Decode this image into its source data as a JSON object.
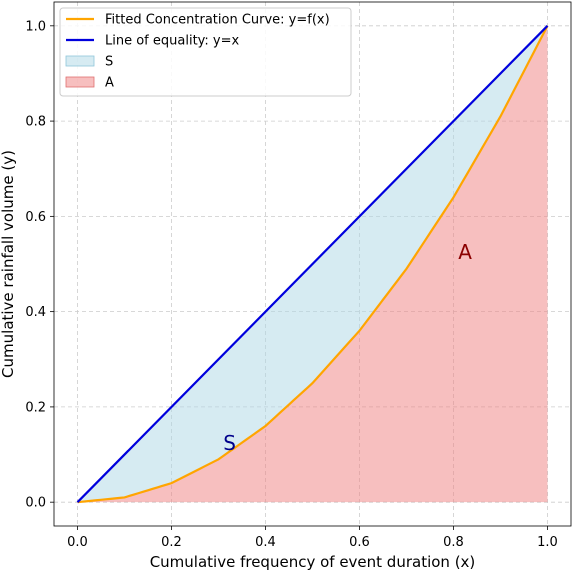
{
  "chart_data": {
    "type": "area",
    "xlabel": "Cumulative frequency of event duration (x)",
    "ylabel": "Cumulative rainfall volume (y)",
    "xlim": [
      -0.05,
      1.05
    ],
    "ylim": [
      -0.05,
      1.05
    ],
    "xticks": [
      "0.0",
      "0.2",
      "0.4",
      "0.6",
      "0.8",
      "1.0"
    ],
    "yticks": [
      "0.0",
      "0.2",
      "0.4",
      "0.6",
      "0.8",
      "1.0"
    ],
    "grid": true,
    "legend_position": "top-left",
    "series": [
      {
        "name": "Fitted Concentration Curve: y=f(x)",
        "kind": "line",
        "color": "#ffa500",
        "x": [
          0.0,
          0.1,
          0.2,
          0.3,
          0.4,
          0.5,
          0.6,
          0.7,
          0.8,
          0.9,
          1.0
        ],
        "y": [
          0.0,
          0.01,
          0.04,
          0.09,
          0.16,
          0.25,
          0.36,
          0.49,
          0.64,
          0.81,
          1.0
        ]
      },
      {
        "name": "Line of equality: y=x",
        "kind": "line",
        "color": "#0000dd",
        "x": [
          0.0,
          1.0
        ],
        "y": [
          0.0,
          1.0
        ]
      }
    ],
    "areas": [
      {
        "name": "S",
        "color": "#add8e6",
        "between": "equality-and-curve"
      },
      {
        "name": "A",
        "color": "#f08080",
        "between": "curve-and-zero"
      }
    ],
    "annotations": [
      {
        "text": "S",
        "x": 0.31,
        "y": 0.11,
        "color": "#00008b"
      },
      {
        "text": "A",
        "x": 0.81,
        "y": 0.51,
        "color": "#8b0000"
      }
    ]
  }
}
